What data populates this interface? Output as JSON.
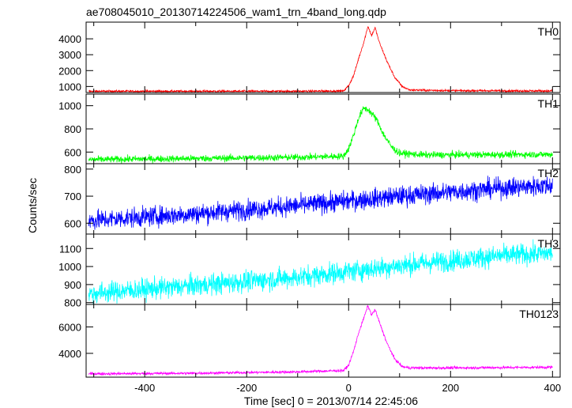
{
  "title": "ae708045010_20130714224506_wam1_trn_4band_long.qdp",
  "ylabel": "Counts/sec",
  "xlabel": "Time [sec] 0 = 2013/07/14 22:45:06",
  "chart_data": {
    "type": "line",
    "title": "ae708045010_20130714224506_wam1_trn_4band_long.qdp",
    "xlabel": "Time [sec] 0 = 2013/07/14 22:45:06",
    "ylabel": "Counts/sec",
    "xlim": [
      -515,
      415
    ],
    "x_ticks": [
      -400,
      -200,
      0,
      200,
      400
    ],
    "grid": false,
    "panels": [
      {
        "name": "TH0",
        "color": "#ff0000",
        "ylim": [
          620,
          5050
        ],
        "y_ticks": [
          1000,
          2000,
          3000,
          4000
        ],
        "points": [
          [
            -510,
            700
          ],
          [
            -300,
            700
          ],
          [
            -100,
            700
          ],
          [
            -10,
            720
          ],
          [
            0,
            1050
          ],
          [
            10,
            1700
          ],
          [
            20,
            2800
          ],
          [
            30,
            3800
          ],
          [
            38,
            4800
          ],
          [
            45,
            4200
          ],
          [
            52,
            4700
          ],
          [
            60,
            3800
          ],
          [
            75,
            2600
          ],
          [
            90,
            1600
          ],
          [
            105,
            1000
          ],
          [
            120,
            780
          ],
          [
            200,
            740
          ],
          [
            400,
            720
          ]
        ],
        "noise": 45
      },
      {
        "name": "TH1",
        "color": "#00ff00",
        "ylim": [
          500,
          1100
        ],
        "y_ticks": [
          600,
          800,
          1000
        ],
        "points": [
          [
            -510,
            535
          ],
          [
            -300,
            545
          ],
          [
            -100,
            555
          ],
          [
            -10,
            565
          ],
          [
            0,
            630
          ],
          [
            10,
            750
          ],
          [
            20,
            900
          ],
          [
            30,
            980
          ],
          [
            40,
            960
          ],
          [
            55,
            880
          ],
          [
            70,
            740
          ],
          [
            85,
            640
          ],
          [
            100,
            590
          ],
          [
            150,
            575
          ],
          [
            400,
            580
          ]
        ],
        "noise": 20
      },
      {
        "name": "TH2",
        "color": "#0000ff",
        "ylim": [
          560,
          820
        ],
        "y_ticks": [
          600,
          700,
          800
        ],
        "points": [
          [
            -510,
            610
          ],
          [
            -300,
            635
          ],
          [
            -100,
            665
          ],
          [
            100,
            700
          ],
          [
            300,
            730
          ],
          [
            400,
            740
          ]
        ],
        "noise": 25
      },
      {
        "name": "TH3",
        "color": "#00ffff",
        "ylim": [
          790,
          1180
        ],
        "y_ticks": [
          800,
          900,
          1000,
          1100
        ],
        "points": [
          [
            -510,
            850
          ],
          [
            -300,
            895
          ],
          [
            -100,
            940
          ],
          [
            100,
            1005
          ],
          [
            300,
            1060
          ],
          [
            400,
            1075
          ]
        ],
        "noise": 40
      },
      {
        "name": "TH0123",
        "color": "#ff00ff",
        "ylim": [
          2200,
          7700
        ],
        "y_ticks": [
          4000,
          6000
        ],
        "points": [
          [
            -510,
            2450
          ],
          [
            -300,
            2500
          ],
          [
            -100,
            2600
          ],
          [
            -10,
            2700
          ],
          [
            0,
            3100
          ],
          [
            10,
            4200
          ],
          [
            20,
            5600
          ],
          [
            30,
            6700
          ],
          [
            38,
            7600
          ],
          [
            45,
            6900
          ],
          [
            52,
            7300
          ],
          [
            60,
            6400
          ],
          [
            75,
            4800
          ],
          [
            90,
            3600
          ],
          [
            105,
            3000
          ],
          [
            120,
            2900
          ],
          [
            200,
            2900
          ],
          [
            400,
            2950
          ]
        ],
        "noise": 70
      }
    ]
  }
}
